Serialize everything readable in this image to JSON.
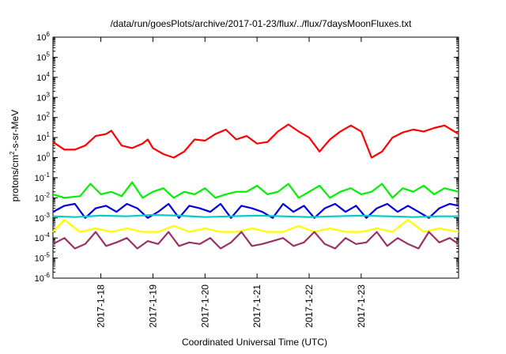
{
  "chart_data": {
    "type": "line",
    "title": "/data/run/goesPlots/archive/2017-01-23/flux/../flux/7daysMoonFluxes.txt",
    "xlabel": "Coordinated Universal Time (UTC)",
    "ylabel": "protons/cm²-s-sr-MeV",
    "yscale": "log",
    "ylim": [
      1e-06,
      1000000.0
    ],
    "xlim": [
      -0.92,
      6.87
    ],
    "x_ticks": [
      "2017-1-18",
      "2017-1-19",
      "2017-1-20",
      "2017-1-21",
      "2017-1-22",
      "2017-1-23"
    ],
    "y_ticks": [
      {
        "base": "10",
        "exp": "-6"
      },
      {
        "base": "10",
        "exp": "-5"
      },
      {
        "base": "10",
        "exp": "-4"
      },
      {
        "base": "10",
        "exp": "-3"
      },
      {
        "base": "10",
        "exp": "-2"
      },
      {
        "base": "10",
        "exp": "-1"
      },
      {
        "base": "10",
        "exp": "0"
      },
      {
        "base": "10",
        "exp": "1"
      },
      {
        "base": "10",
        "exp": "2"
      },
      {
        "base": "10",
        "exp": "3"
      },
      {
        "base": "10",
        "exp": "4"
      },
      {
        "base": "10",
        "exp": "5"
      },
      {
        "base": "10",
        "exp": "6"
      }
    ],
    "x_unit_note": "x values are days relative to 2017-01-18 00:00 UTC",
    "series": [
      {
        "color": "#ff0000",
        "x": [
          -0.92,
          -0.7,
          -0.5,
          -0.3,
          -0.1,
          0.1,
          0.2,
          0.4,
          0.6,
          0.8,
          0.9,
          1.0,
          1.2,
          1.4,
          1.6,
          1.8,
          2.0,
          2.2,
          2.4,
          2.6,
          2.8,
          3.0,
          3.2,
          3.4,
          3.6,
          3.8,
          4.0,
          4.2,
          4.4,
          4.6,
          4.8,
          5.0,
          5.2,
          5.4,
          5.6,
          5.8,
          6.0,
          6.2,
          6.4,
          6.6,
          6.87
        ],
        "y": [
          6,
          2.5,
          2.5,
          4,
          12,
          15,
          22,
          4,
          3,
          5,
          8,
          3,
          1.5,
          1,
          2,
          8,
          7,
          15,
          25,
          8,
          12,
          5,
          6,
          20,
          45,
          20,
          10,
          2,
          8,
          20,
          40,
          20,
          1,
          2,
          10,
          18,
          25,
          20,
          30,
          40,
          15
        ]
      },
      {
        "color": "#00ee00",
        "x": [
          -0.92,
          -0.7,
          -0.4,
          -0.2,
          0.0,
          0.2,
          0.4,
          0.6,
          0.8,
          1.0,
          1.2,
          1.4,
          1.6,
          1.8,
          2.0,
          2.2,
          2.4,
          2.6,
          2.8,
          3.0,
          3.2,
          3.4,
          3.6,
          3.8,
          4.0,
          4.2,
          4.4,
          4.6,
          4.8,
          5.0,
          5.2,
          5.4,
          5.6,
          5.8,
          6.0,
          6.2,
          6.4,
          6.6,
          6.87
        ],
        "y": [
          0.015,
          0.01,
          0.012,
          0.05,
          0.015,
          0.02,
          0.012,
          0.06,
          0.01,
          0.02,
          0.03,
          0.01,
          0.02,
          0.015,
          0.03,
          0.01,
          0.015,
          0.02,
          0.02,
          0.04,
          0.015,
          0.02,
          0.05,
          0.01,
          0.02,
          0.04,
          0.01,
          0.02,
          0.03,
          0.015,
          0.02,
          0.05,
          0.01,
          0.03,
          0.02,
          0.04,
          0.015,
          0.03,
          0.02
        ]
      },
      {
        "color": "#0000dd",
        "x": [
          -0.92,
          -0.7,
          -0.5,
          -0.3,
          -0.1,
          0.1,
          0.3,
          0.5,
          0.7,
          0.9,
          1.1,
          1.3,
          1.5,
          1.7,
          1.9,
          2.1,
          2.3,
          2.5,
          2.7,
          2.9,
          3.1,
          3.3,
          3.5,
          3.7,
          3.9,
          4.1,
          4.3,
          4.5,
          4.7,
          4.9,
          5.1,
          5.3,
          5.5,
          5.7,
          5.9,
          6.1,
          6.3,
          6.5,
          6.7,
          6.87
        ],
        "y": [
          0.002,
          0.004,
          0.005,
          0.001,
          0.003,
          0.004,
          0.002,
          0.005,
          0.003,
          0.001,
          0.002,
          0.005,
          0.001,
          0.004,
          0.003,
          0.002,
          0.005,
          0.001,
          0.004,
          0.003,
          0.002,
          0.001,
          0.005,
          0.002,
          0.004,
          0.001,
          0.003,
          0.005,
          0.002,
          0.004,
          0.001,
          0.003,
          0.005,
          0.002,
          0.004,
          0.002,
          0.001,
          0.003,
          0.005,
          0.004
        ]
      },
      {
        "color": "#00cccc",
        "x": [
          -0.92,
          -0.5,
          0.0,
          0.5,
          1.0,
          1.5,
          2.0,
          2.5,
          3.0,
          3.5,
          4.0,
          4.5,
          5.0,
          5.5,
          6.0,
          6.5,
          6.87
        ],
        "y": [
          0.0012,
          0.0011,
          0.0013,
          0.0012,
          0.0014,
          0.0013,
          0.0011,
          0.0012,
          0.0013,
          0.0012,
          0.0011,
          0.0012,
          0.0013,
          0.0012,
          0.0011,
          0.0012,
          0.0012
        ]
      },
      {
        "color": "#ffff00",
        "x": [
          -0.92,
          -0.7,
          -0.4,
          -0.1,
          0.2,
          0.5,
          0.8,
          1.1,
          1.4,
          1.7,
          2.0,
          2.3,
          2.6,
          2.9,
          3.2,
          3.5,
          3.8,
          4.1,
          4.4,
          4.7,
          5.0,
          5.3,
          5.6,
          5.9,
          6.2,
          6.5,
          6.87
        ],
        "y": [
          0.0002,
          0.0008,
          0.0002,
          0.0003,
          0.0002,
          0.0003,
          0.0002,
          0.0002,
          0.0004,
          0.0002,
          0.0003,
          0.0002,
          0.0002,
          0.0003,
          0.0002,
          0.0002,
          0.0004,
          0.0002,
          0.0003,
          0.0002,
          0.0002,
          0.0003,
          0.0002,
          0.0008,
          0.0002,
          0.0003,
          0.0002
        ]
      },
      {
        "color": "#993366",
        "x": [
          -0.92,
          -0.7,
          -0.5,
          -0.3,
          -0.1,
          0.1,
          0.3,
          0.5,
          0.7,
          0.9,
          1.1,
          1.3,
          1.5,
          1.7,
          1.9,
          2.1,
          2.3,
          2.5,
          2.7,
          2.9,
          3.1,
          3.3,
          3.5,
          3.7,
          3.9,
          4.1,
          4.3,
          4.5,
          4.7,
          4.9,
          5.1,
          5.3,
          5.5,
          5.7,
          5.9,
          6.1,
          6.3,
          6.5,
          6.7,
          6.87
        ],
        "y": [
          5e-05,
          0.0001,
          3e-05,
          5e-05,
          0.0002,
          4e-05,
          6e-05,
          0.0001,
          3e-05,
          7e-05,
          5e-05,
          0.0002,
          4e-05,
          6e-05,
          5e-05,
          0.0001,
          3e-05,
          6e-05,
          0.0002,
          4e-05,
          5e-05,
          7e-05,
          0.0001,
          4e-05,
          6e-05,
          0.0002,
          5e-05,
          3e-05,
          0.0001,
          5e-05,
          6e-05,
          0.0002,
          4e-05,
          0.0001,
          5e-05,
          3e-05,
          0.0002,
          6e-05,
          0.0001,
          5e-05
        ]
      }
    ]
  }
}
